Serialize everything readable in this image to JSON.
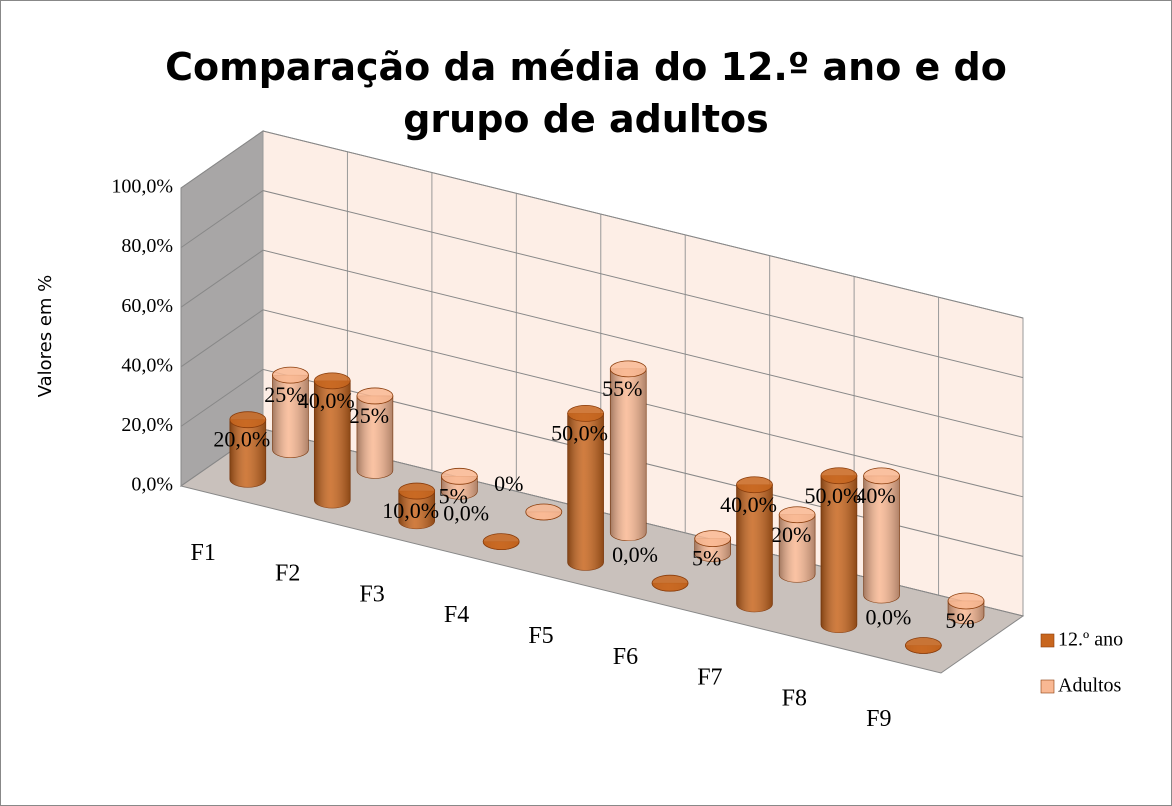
{
  "chart_data": {
    "type": "bar3d",
    "title": "Comparação da média do 12.º ano e do grupo de adultos",
    "y_label": "Valores em %",
    "categories": [
      "F1",
      "F2",
      "F3",
      "F4",
      "F5",
      "F6",
      "F7",
      "F8",
      "F9"
    ],
    "series": [
      {
        "name": "12.º ano",
        "color": "#c8661e",
        "values": [
          20,
          40,
          10,
          0,
          50,
          0,
          40,
          50,
          0
        ],
        "value_labels": [
          "20,0%",
          "40,0%",
          "10,0%",
          "0,0%",
          "50,0%",
          "0,0%",
          "40,0%",
          "50,0%",
          "0,0%"
        ]
      },
      {
        "name": "Adultos",
        "color": "#f9b893",
        "values": [
          25,
          25,
          5,
          0,
          55,
          5,
          20,
          40,
          5
        ],
        "value_labels": [
          "25%",
          "25%",
          "5%",
          "0%",
          "55%",
          "5%",
          "20%",
          "40%",
          "5%"
        ]
      }
    ],
    "ylim": [
      0,
      100
    ],
    "yticks": [
      {
        "value": 0,
        "label": "0,0%"
      },
      {
        "value": 20,
        "label": "20,0%"
      },
      {
        "value": 40,
        "label": "40,0%"
      },
      {
        "value": 60,
        "label": "60,0%"
      },
      {
        "value": 80,
        "label": "80,0%"
      },
      {
        "value": 100,
        "label": "100,0%"
      }
    ],
    "grid": true,
    "legend": "right"
  }
}
